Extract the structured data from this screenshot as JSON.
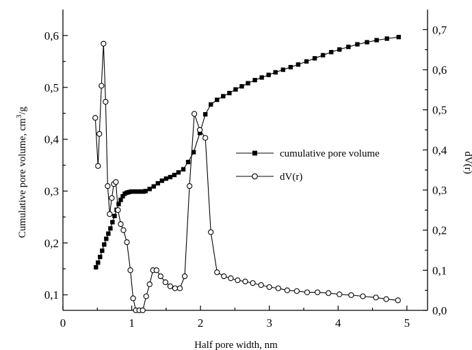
{
  "chart_data": {
    "type": "line",
    "title": "",
    "xlabel": "Half pore width, nm",
    "ylabel_left": "Cumulative pore volume, cm",
    "ylabel_left_sup": "3",
    "ylabel_left_suffix": "/g",
    "ylabel_right": "dV(r)",
    "xlim": [
      0,
      5.3
    ],
    "ylim_left": [
      0.07,
      0.65
    ],
    "ylim_right": [
      0.0,
      0.75
    ],
    "x_ticks": [
      0,
      1,
      2,
      3,
      4,
      5
    ],
    "x_tick_labels": [
      "0",
      "1",
      "2",
      "3",
      "4",
      "5"
    ],
    "y_left_ticks": [
      0.1,
      0.2,
      0.3,
      0.4,
      0.5,
      0.6
    ],
    "y_left_tick_labels": [
      "0,1",
      "0,2",
      "0,3",
      "0,4",
      "0,5",
      "0,6"
    ],
    "y_right_ticks": [
      0.0,
      0.1,
      0.2,
      0.3,
      0.4,
      0.5,
      0.6,
      0.7
    ],
    "y_right_tick_labels": [
      "0,0",
      "0,1",
      "0,2",
      "0,3",
      "0,4",
      "0,5",
      "0,6",
      "0,7"
    ],
    "grid": false,
    "legend_position": "center-right",
    "series": [
      {
        "name": "cumulative pore volume",
        "axis": "left",
        "marker": "filled-square",
        "x": [
          0.48,
          0.51,
          0.54,
          0.57,
          0.6,
          0.63,
          0.66,
          0.69,
          0.72,
          0.75,
          0.78,
          0.81,
          0.84,
          0.87,
          0.9,
          0.93,
          0.96,
          0.99,
          1.02,
          1.05,
          1.08,
          1.11,
          1.14,
          1.17,
          1.2,
          1.26,
          1.32,
          1.38,
          1.44,
          1.5,
          1.56,
          1.62,
          1.68,
          1.75,
          1.82,
          1.9,
          1.99,
          2.07,
          2.15,
          2.24,
          2.33,
          2.42,
          2.51,
          2.6,
          2.69,
          2.79,
          2.89,
          2.99,
          3.09,
          3.2,
          3.31,
          3.42,
          3.54,
          3.66,
          3.78,
          3.9,
          4.02,
          4.15,
          4.28,
          4.42,
          4.56,
          4.71,
          4.88
        ],
        "values": [
          0.153,
          0.162,
          0.173,
          0.185,
          0.197,
          0.208,
          0.218,
          0.228,
          0.24,
          0.252,
          0.264,
          0.275,
          0.283,
          0.29,
          0.295,
          0.297,
          0.298,
          0.299,
          0.299,
          0.299,
          0.299,
          0.299,
          0.299,
          0.299,
          0.3,
          0.304,
          0.309,
          0.315,
          0.32,
          0.324,
          0.327,
          0.331,
          0.336,
          0.342,
          0.356,
          0.375,
          0.412,
          0.448,
          0.467,
          0.476,
          0.483,
          0.489,
          0.496,
          0.502,
          0.508,
          0.514,
          0.519,
          0.524,
          0.529,
          0.534,
          0.539,
          0.544,
          0.55,
          0.556,
          0.562,
          0.568,
          0.573,
          0.578,
          0.583,
          0.587,
          0.591,
          0.594,
          0.597
        ]
      },
      {
        "name": "dV(r)",
        "axis": "right",
        "marker": "open-circle",
        "x": [
          0.47,
          0.51,
          0.53,
          0.56,
          0.59,
          0.62,
          0.65,
          0.68,
          0.71,
          0.74,
          0.77,
          0.8,
          0.84,
          0.88,
          0.93,
          0.98,
          1.02,
          1.06,
          1.11,
          1.16,
          1.21,
          1.26,
          1.31,
          1.36,
          1.42,
          1.49,
          1.56,
          1.63,
          1.7,
          1.77,
          1.84,
          1.91,
          1.99,
          2.07,
          2.15,
          2.24,
          2.34,
          2.44,
          2.54,
          2.65,
          2.76,
          2.88,
          3.0,
          3.13,
          3.26,
          3.4,
          3.55,
          3.7,
          3.86,
          4.02,
          4.19,
          4.36,
          4.55,
          4.7,
          4.87
        ],
        "values": [
          0.48,
          0.36,
          0.44,
          0.56,
          0.665,
          0.52,
          0.31,
          0.24,
          0.28,
          0.315,
          0.32,
          0.25,
          0.215,
          0.2,
          0.17,
          0.1,
          0.03,
          0.0,
          0.0,
          0.0,
          0.035,
          0.065,
          0.1,
          0.1,
          0.085,
          0.07,
          0.06,
          0.055,
          0.055,
          0.085,
          0.31,
          0.49,
          0.45,
          0.43,
          0.195,
          0.095,
          0.085,
          0.08,
          0.075,
          0.072,
          0.068,
          0.063,
          0.058,
          0.055,
          0.05,
          0.048,
          0.045,
          0.045,
          0.043,
          0.04,
          0.038,
          0.035,
          0.032,
          0.028,
          0.025
        ]
      }
    ]
  }
}
